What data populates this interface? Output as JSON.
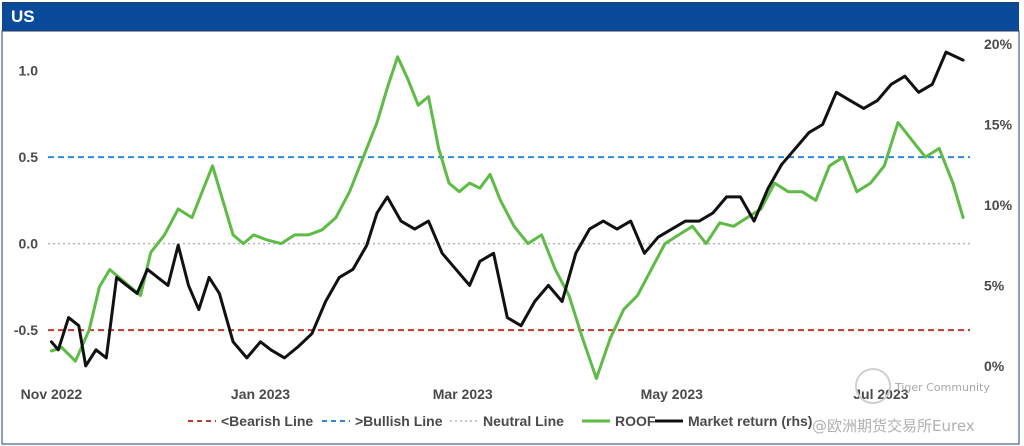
{
  "chart_data": {
    "type": "line",
    "title": "US",
    "x_tick_labels": [
      "Nov 2022",
      "Jan 2023",
      "Mar 2023",
      "May 2023",
      "Jul 2023"
    ],
    "x_tick_dates": [
      "2022-11-01",
      "2023-01-01",
      "2023-03-01",
      "2023-05-01",
      "2023-07-01"
    ],
    "x_range": [
      "2022-10-31",
      "2023-07-27"
    ],
    "y_left": {
      "ticks": [
        "-0.5",
        "0.0",
        "0.5",
        "1.0"
      ],
      "range": [
        -0.8,
        1.2
      ]
    },
    "y_right": {
      "ticks": [
        "0%",
        "5%",
        "10%",
        "15%",
        "20%"
      ],
      "range": [
        -1,
        20.5
      ]
    },
    "reference_lines": [
      {
        "name": "<Bearish Line",
        "value": -0.5,
        "color": "#c0392b",
        "style": "dashed"
      },
      {
        "name": ">Bullish Line",
        "value": 0.5,
        "color": "#2e86de",
        "style": "dashed"
      },
      {
        "name": "Neutral Line",
        "value": 0.0,
        "color": "#b5b5b5",
        "style": "dotted"
      }
    ],
    "series": [
      {
        "name": "ROOF",
        "axis": "left",
        "color": "#5dbb46",
        "x": [
          "2022-11-01",
          "2022-11-04",
          "2022-11-08",
          "2022-11-12",
          "2022-11-15",
          "2022-11-18",
          "2022-11-21",
          "2022-11-24",
          "2022-11-27",
          "2022-11-30",
          "2022-12-04",
          "2022-12-08",
          "2022-12-12",
          "2022-12-15",
          "2022-12-18",
          "2022-12-21",
          "2022-12-24",
          "2022-12-27",
          "2022-12-30",
          "2023-01-03",
          "2023-01-07",
          "2023-01-11",
          "2023-01-15",
          "2023-01-19",
          "2023-01-23",
          "2023-01-27",
          "2023-01-31",
          "2023-02-04",
          "2023-02-07",
          "2023-02-10",
          "2023-02-13",
          "2023-02-16",
          "2023-02-19",
          "2023-02-22",
          "2023-02-25",
          "2023-02-28",
          "2023-03-03",
          "2023-03-06",
          "2023-03-09",
          "2023-03-12",
          "2023-03-16",
          "2023-03-20",
          "2023-03-24",
          "2023-03-28",
          "2023-04-01",
          "2023-04-05",
          "2023-04-09",
          "2023-04-13",
          "2023-04-17",
          "2023-04-21",
          "2023-04-25",
          "2023-04-29",
          "2023-05-03",
          "2023-05-07",
          "2023-05-11",
          "2023-05-15",
          "2023-05-19",
          "2023-05-23",
          "2023-05-27",
          "2023-05-31",
          "2023-06-04",
          "2023-06-08",
          "2023-06-12",
          "2023-06-16",
          "2023-06-20",
          "2023-06-24",
          "2023-06-28",
          "2023-07-02",
          "2023-07-06",
          "2023-07-10",
          "2023-07-14",
          "2023-07-18",
          "2023-07-22",
          "2023-07-25"
        ],
        "values": [
          -0.62,
          -0.6,
          -0.68,
          -0.5,
          -0.25,
          -0.15,
          -0.2,
          -0.25,
          -0.3,
          -0.05,
          0.05,
          0.2,
          0.15,
          0.3,
          0.45,
          0.25,
          0.05,
          0.0,
          0.05,
          0.02,
          0.0,
          0.05,
          0.05,
          0.08,
          0.15,
          0.3,
          0.5,
          0.7,
          0.9,
          1.08,
          0.95,
          0.8,
          0.85,
          0.55,
          0.35,
          0.3,
          0.35,
          0.32,
          0.4,
          0.25,
          0.1,
          0.0,
          0.05,
          -0.15,
          -0.3,
          -0.55,
          -0.78,
          -0.55,
          -0.38,
          -0.3,
          -0.15,
          0.0,
          0.05,
          0.1,
          0.0,
          0.12,
          0.1,
          0.15,
          0.2,
          0.35,
          0.3,
          0.3,
          0.25,
          0.45,
          0.5,
          0.3,
          0.35,
          0.45,
          0.7,
          0.6,
          0.5,
          0.55,
          0.35,
          0.15
        ]
      },
      {
        "name": "Market return (rhs)",
        "axis": "right",
        "color": "#111111",
        "x": [
          "2022-11-01",
          "2022-11-03",
          "2022-11-06",
          "2022-11-09",
          "2022-11-11",
          "2022-11-14",
          "2022-11-17",
          "2022-11-20",
          "2022-11-23",
          "2022-11-26",
          "2022-11-29",
          "2022-12-02",
          "2022-12-05",
          "2022-12-08",
          "2022-12-11",
          "2022-12-14",
          "2022-12-17",
          "2022-12-20",
          "2022-12-24",
          "2022-12-28",
          "2023-01-01",
          "2023-01-04",
          "2023-01-08",
          "2023-01-12",
          "2023-01-16",
          "2023-01-20",
          "2023-01-24",
          "2023-01-28",
          "2023-02-01",
          "2023-02-04",
          "2023-02-07",
          "2023-02-11",
          "2023-02-15",
          "2023-02-19",
          "2023-02-23",
          "2023-02-27",
          "2023-03-03",
          "2023-03-06",
          "2023-03-10",
          "2023-03-14",
          "2023-03-18",
          "2023-03-22",
          "2023-03-26",
          "2023-03-30",
          "2023-04-03",
          "2023-04-07",
          "2023-04-11",
          "2023-04-15",
          "2023-04-19",
          "2023-04-23",
          "2023-04-27",
          "2023-05-01",
          "2023-05-05",
          "2023-05-09",
          "2023-05-13",
          "2023-05-17",
          "2023-05-21",
          "2023-05-25",
          "2023-05-29",
          "2023-06-02",
          "2023-06-06",
          "2023-06-10",
          "2023-06-14",
          "2023-06-18",
          "2023-06-22",
          "2023-06-26",
          "2023-06-30",
          "2023-07-04",
          "2023-07-08",
          "2023-07-12",
          "2023-07-16",
          "2023-07-20",
          "2023-07-25"
        ],
        "values": [
          1.5,
          1.0,
          3.0,
          2.5,
          0.0,
          1.0,
          0.5,
          5.5,
          5.0,
          4.5,
          6.0,
          5.5,
          5.0,
          7.5,
          5.0,
          3.5,
          5.5,
          4.5,
          1.5,
          0.5,
          1.5,
          1.0,
          0.5,
          1.2,
          2.0,
          4.0,
          5.5,
          6.0,
          7.5,
          9.5,
          10.5,
          9.0,
          8.5,
          9.0,
          7.0,
          6.0,
          5.0,
          6.5,
          7.0,
          3.0,
          2.5,
          4.0,
          5.0,
          4.0,
          7.0,
          8.5,
          9.0,
          8.5,
          9.0,
          7.0,
          8.0,
          8.5,
          9.0,
          9.0,
          9.5,
          10.5,
          10.5,
          9.0,
          11.0,
          12.5,
          13.5,
          14.5,
          15.0,
          17.0,
          16.5,
          16.0,
          16.5,
          17.5,
          18.0,
          17.0,
          17.5,
          19.5,
          19.0
        ]
      }
    ],
    "legend": [
      "<Bearish Line",
      ">Bullish Line",
      "Neutral Line",
      "ROOF",
      "Market return (rhs)"
    ],
    "legend_position": "bottom"
  },
  "watermark": {
    "line1": "Tiger Community",
    "line2": "@欧洲期货交易所Eurex"
  }
}
